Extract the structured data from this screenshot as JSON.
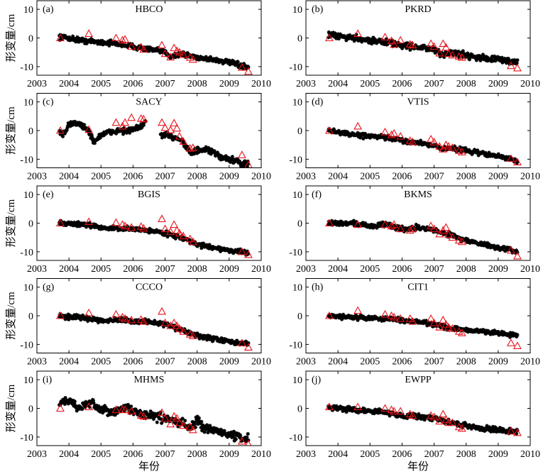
{
  "chart_data": {
    "type": "scatter",
    "layout": "5 rows x 2 columns",
    "xlim": [
      2003,
      2010
    ],
    "ylim": [
      -13,
      13
    ],
    "xticks": [
      2003,
      2004,
      2005,
      2006,
      2007,
      2008,
      2009,
      2010
    ],
    "yticks": [
      10,
      0,
      -10
    ],
    "ylabel": "形变量/cm",
    "xlabel": "年份",
    "grid": false,
    "colors": {
      "gps": "#000000",
      "insar": "#e8141b"
    },
    "markers": {
      "gps": "asterisk",
      "insar": "open-triangle"
    },
    "insar_dates": [
      2003.73,
      2004.62,
      2005.47,
      2005.67,
      2005.75,
      2005.95,
      2006.25,
      2006.33,
      2006.9,
      2007.0,
      2007.17,
      2007.28,
      2007.37,
      2007.45,
      2007.57,
      2007.78,
      2007.87,
      2009.4,
      2009.6
    ],
    "panels": [
      {
        "tag": "(a)",
        "station": "HBCO",
        "spread": 1.3,
        "gps_trend": [
          [
            2003.7,
            0.5
          ],
          [
            2004.5,
            -1
          ],
          [
            2005.0,
            -1.5
          ],
          [
            2005.5,
            -2
          ],
          [
            2006.0,
            -3
          ],
          [
            2007.0,
            -5
          ],
          [
            2007.2,
            -6.5
          ],
          [
            2007.5,
            -5.5
          ],
          [
            2008.0,
            -6.8
          ],
          [
            2008.5,
            -7.5
          ],
          [
            2009.0,
            -8.5
          ],
          [
            2009.6,
            -10.5
          ]
        ],
        "insar": [
          0,
          1.5,
          0,
          -0.8,
          -0.5,
          -3,
          -3.2,
          -4,
          -2.5,
          -5.5,
          -6.7,
          -3.5,
          -4.5,
          -5,
          -5.8,
          -6.8,
          -7.5,
          -10.3,
          -11.7
        ]
      },
      {
        "tag": "(b)",
        "station": "PKRD",
        "spread": 1.6,
        "gps_trend": [
          [
            2003.7,
            1
          ],
          [
            2004.5,
            0
          ],
          [
            2005.0,
            -0.8
          ],
          [
            2005.5,
            -1.5
          ],
          [
            2006.0,
            -2.5
          ],
          [
            2007.0,
            -4
          ],
          [
            2007.2,
            -6
          ],
          [
            2007.5,
            -5
          ],
          [
            2008.0,
            -6
          ],
          [
            2008.5,
            -7
          ],
          [
            2009.0,
            -7.5
          ],
          [
            2009.6,
            -8.5
          ]
        ],
        "insar": [
          0,
          1.5,
          0.3,
          -1,
          -2.3,
          -0.8,
          -2.2,
          -2.5,
          -2,
          -3,
          -5.3,
          -2,
          -3.3,
          -5.5,
          -6,
          -6.5,
          -6.8,
          -9.7,
          -10.5
        ]
      },
      {
        "tag": "(c)",
        "station": "SACY",
        "spread": 1.6,
        "gps_trend": [
          [
            2003.7,
            -0.5
          ],
          [
            2003.85,
            -1.5
          ],
          [
            2004.0,
            2.5
          ],
          [
            2004.3,
            2.5
          ],
          [
            2004.6,
            0
          ],
          [
            2004.8,
            -4
          ],
          [
            2005.0,
            -1.5
          ],
          [
            2005.5,
            0
          ],
          [
            2005.9,
            0
          ],
          [
            2006.2,
            1
          ],
          [
            2006.4,
            3
          ],
          null,
          [
            2006.85,
            -1.5
          ],
          [
            2007.2,
            -2
          ],
          [
            2007.5,
            -3
          ],
          [
            2007.8,
            -8
          ],
          [
            2008.0,
            -7
          ],
          [
            2008.4,
            -7
          ],
          [
            2008.7,
            -9
          ],
          [
            2009.0,
            -10
          ],
          [
            2009.6,
            -12
          ]
        ],
        "insar": [
          0,
          0.3,
          2.8,
          1.5,
          2.8,
          4.5,
          4.2,
          4,
          2.8,
          1,
          0.2,
          2.6,
          0.8,
          -2,
          -3.8,
          -6.2,
          -6,
          -8.5,
          -12
        ]
      },
      {
        "tag": "(d)",
        "station": "VTIS",
        "spread": 1.2,
        "gps_trend": [
          [
            2003.7,
            0
          ],
          [
            2004.5,
            -1.5
          ],
          [
            2005.0,
            -2
          ],
          [
            2005.5,
            -2.5
          ],
          [
            2006.0,
            -3.5
          ],
          [
            2007.0,
            -5
          ],
          [
            2007.2,
            -6.5
          ],
          [
            2007.5,
            -6
          ],
          [
            2008.0,
            -7
          ],
          [
            2008.5,
            -8
          ],
          [
            2009.0,
            -9
          ],
          [
            2009.6,
            -10.5
          ]
        ],
        "insar": [
          0,
          1.5,
          -0.5,
          -1.5,
          -1,
          -2,
          -3.5,
          -4,
          -3,
          -4,
          -5.5,
          -6.5,
          -5,
          -5.5,
          -6,
          -7,
          -7.5,
          -9.8,
          -11
        ]
      },
      {
        "tag": "(e)",
        "station": "BGIS",
        "spread": 1.1,
        "gps_trend": [
          [
            2003.7,
            0
          ],
          [
            2004.5,
            -0.5
          ],
          [
            2005.0,
            -1.5
          ],
          [
            2005.5,
            -2
          ],
          [
            2006.0,
            -2
          ],
          [
            2006.5,
            -2.5
          ],
          [
            2007.0,
            -3.5
          ],
          [
            2007.5,
            -5
          ],
          [
            2008.0,
            -7.5
          ],
          [
            2008.5,
            -8.5
          ],
          [
            2009.0,
            -9.5
          ],
          [
            2009.6,
            -10.5
          ]
        ],
        "insar": [
          0,
          0.5,
          0.2,
          -0.5,
          -1,
          -1.5,
          -1.2,
          -1.8,
          1.5,
          -2,
          -3,
          -0.5,
          -2.5,
          -3.5,
          -4.5,
          -5.5,
          -6.5,
          -10,
          -11
        ]
      },
      {
        "tag": "(f)",
        "station": "BKMS",
        "spread": 1.3,
        "gps_trend": [
          [
            2003.7,
            0
          ],
          [
            2004.5,
            0
          ],
          [
            2005.0,
            -1
          ],
          [
            2005.5,
            -0.5
          ],
          [
            2006.0,
            -2
          ],
          [
            2006.5,
            -1.5
          ],
          [
            2007.0,
            -2.5
          ],
          [
            2007.5,
            -4
          ],
          [
            2008.0,
            -6
          ],
          [
            2008.5,
            -7.5
          ],
          [
            2009.0,
            -8.5
          ],
          [
            2009.6,
            -10
          ]
        ],
        "insar": [
          0,
          -0.5,
          -0.5,
          -1,
          -0.5,
          -2,
          -2.5,
          -2,
          -1,
          -2,
          -3.8,
          -2.5,
          -1.5,
          -4,
          -5,
          -6,
          -6.5,
          -9.5,
          -11.5
        ]
      },
      {
        "tag": "(g)",
        "station": "CCCO",
        "spread": 1.2,
        "gps_trend": [
          [
            2003.7,
            0
          ],
          [
            2004.5,
            -0.8
          ],
          [
            2005.0,
            -1.5
          ],
          [
            2005.5,
            -1.5
          ],
          [
            2006.0,
            -2
          ],
          [
            2006.5,
            -2
          ],
          [
            2007.0,
            -3
          ],
          [
            2007.5,
            -5
          ],
          [
            2008.0,
            -7
          ],
          [
            2008.5,
            -8
          ],
          [
            2009.0,
            -9
          ],
          [
            2009.6,
            -10
          ]
        ],
        "insar": [
          0,
          1,
          0.5,
          -0.5,
          -1,
          -1.5,
          -1.3,
          -2,
          1.5,
          -2.5,
          -3.5,
          -2.5,
          -3.5,
          -4.5,
          -5.5,
          -6.5,
          -7,
          -9.5,
          -11
        ]
      },
      {
        "tag": "(h)",
        "station": "CIT1",
        "spread": 1.1,
        "gps_trend": [
          [
            2003.7,
            0
          ],
          [
            2004.5,
            -0.5
          ],
          [
            2005.0,
            -0.8
          ],
          [
            2005.5,
            -1
          ],
          [
            2006.0,
            -1.5
          ],
          [
            2006.5,
            -2
          ],
          [
            2007.0,
            -3
          ],
          [
            2007.5,
            -4.5
          ],
          [
            2008.0,
            -5
          ],
          [
            2008.5,
            -5.5
          ],
          [
            2009.0,
            -6
          ],
          [
            2009.6,
            -7
          ]
        ],
        "insar": [
          0,
          1.8,
          0.5,
          0,
          -0.5,
          -1,
          -1,
          -2,
          -1,
          -2.5,
          -4,
          -1.5,
          -3,
          -4,
          -4.5,
          -5.5,
          -6,
          -9.5,
          -10.5
        ]
      },
      {
        "tag": "(i)",
        "station": "MHMS",
        "spread": 2.2,
        "gps_trend": [
          [
            2003.7,
            1.5
          ],
          [
            2003.9,
            3
          ],
          [
            2004.3,
            0.5
          ],
          [
            2004.8,
            1.5
          ],
          [
            2005.0,
            -1
          ],
          [
            2005.5,
            -1
          ],
          [
            2005.8,
            0.5
          ],
          [
            2006.0,
            -1
          ],
          [
            2006.5,
            -2.5
          ],
          [
            2007.0,
            -3.5
          ],
          [
            2007.5,
            -5
          ],
          [
            2007.8,
            -6.5
          ],
          [
            2008.0,
            -4
          ],
          [
            2008.2,
            -7
          ],
          [
            2008.5,
            -7.5
          ],
          [
            2009.0,
            -9
          ],
          [
            2009.6,
            -11
          ]
        ],
        "insar": [
          0,
          0.5,
          -0.5,
          -0.5,
          -0.5,
          -1,
          -2.5,
          -2.8,
          -1.5,
          -3.5,
          -5.5,
          -2.8,
          -3.5,
          -5,
          -6,
          -6.5,
          -7.5,
          -11.5,
          -12.5
        ]
      },
      {
        "tag": "(j)",
        "station": "EWPP",
        "spread": 1.3,
        "gps_trend": [
          [
            2003.7,
            0.5
          ],
          [
            2004.5,
            -0.5
          ],
          [
            2005.0,
            -0.8
          ],
          [
            2005.5,
            -1.5
          ],
          [
            2006.0,
            -2.5
          ],
          [
            2006.5,
            -2.8
          ],
          [
            2007.0,
            -3.5
          ],
          [
            2007.5,
            -5
          ],
          [
            2008.0,
            -6
          ],
          [
            2008.5,
            -7
          ],
          [
            2009.0,
            -7.5
          ],
          [
            2009.6,
            -8
          ]
        ],
        "insar": [
          0.5,
          0.5,
          0,
          -0.5,
          -1,
          -1,
          -2,
          -2.5,
          -2.5,
          -3,
          -4.5,
          -2,
          -4,
          -5,
          -5,
          -6.5,
          -7,
          -8,
          -8.5
        ]
      }
    ]
  }
}
